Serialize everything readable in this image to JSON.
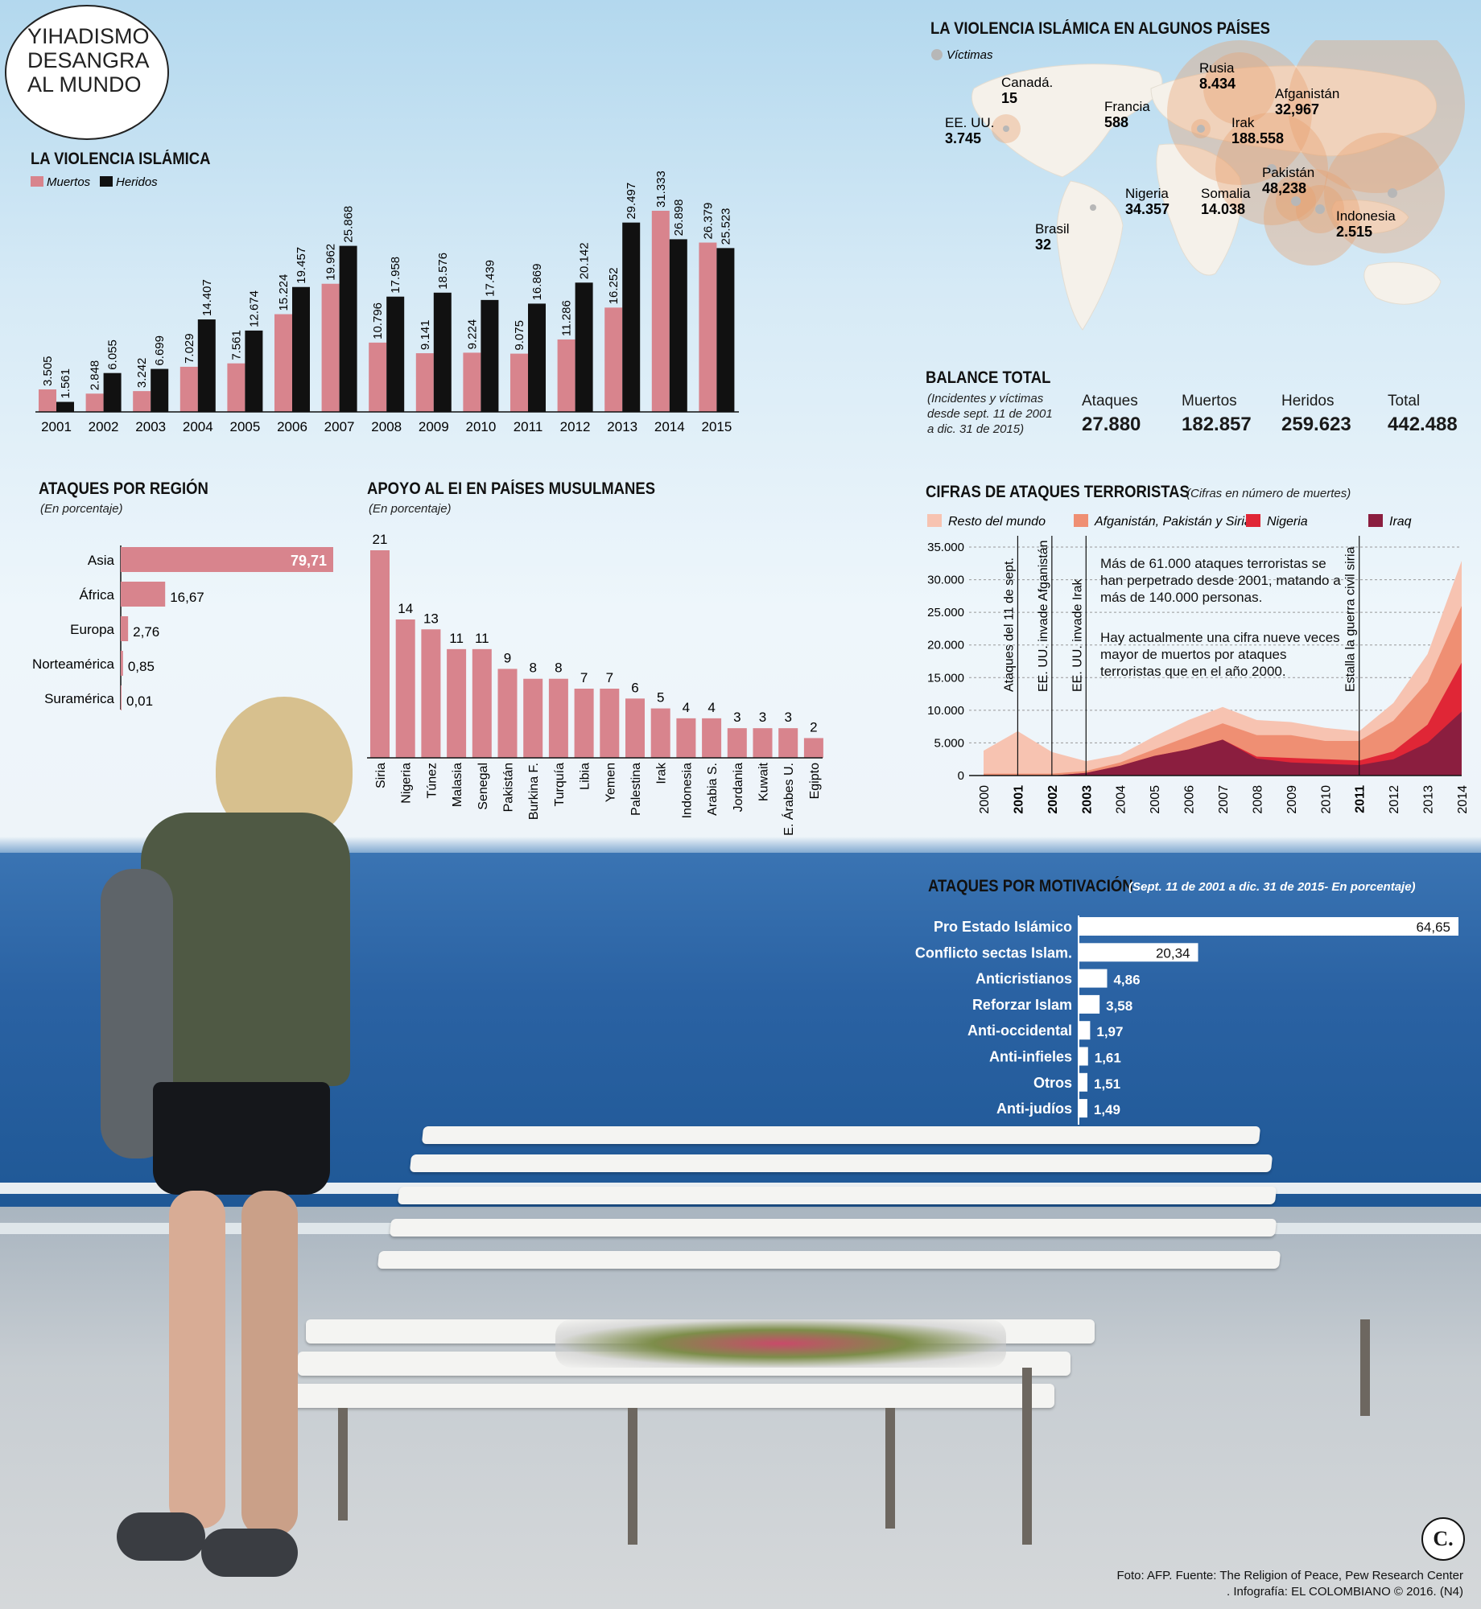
{
  "main_title": [
    "YIHADISMO",
    "DESANGRA",
    "AL MUNDO"
  ],
  "colors": {
    "muertos": "#d8848d",
    "heridos": "#111111",
    "resto": "#f7c3b1",
    "afg": "#ef8f73",
    "nigeria": "#e02636",
    "iraq": "#8b1e3f"
  },
  "violencia": {
    "title": "LA VIOLENCIA ISLÁMICA",
    "legend": [
      "Muertos",
      "Heridos"
    ],
    "chart_data": {
      "type": "bar",
      "categories": [
        "2001",
        "2002",
        "2003",
        "2004",
        "2005",
        "2006",
        "2007",
        "2008",
        "2009",
        "2010",
        "2011",
        "2012",
        "2013",
        "2014",
        "2015"
      ],
      "series": [
        {
          "name": "Muertos",
          "values": [
            3505,
            2848,
            3242,
            7029,
            7561,
            15224,
            19962,
            10796,
            9141,
            9224,
            9075,
            11286,
            16252,
            31333,
            26379
          ],
          "labels": [
            "3.505",
            "2.848",
            "3.242",
            "7.029",
            "7.561",
            "15.224",
            "19.962",
            "10.796",
            "9.141",
            "9.224",
            "9.075",
            "11.286",
            "16.252",
            "31.333",
            "26.379"
          ]
        },
        {
          "name": "Heridos",
          "values": [
            1561,
            6055,
            6699,
            14407,
            12674,
            19457,
            25868,
            17958,
            18576,
            17439,
            16869,
            20142,
            29497,
            26898,
            25523
          ],
          "labels": [
            "1.561",
            "6.055",
            "6.699",
            "14.407",
            "12.674",
            "19.457",
            "25.868",
            "17.958",
            "18.576",
            "17.439",
            "16.869",
            "20.142",
            "29.497",
            "26.898",
            "25.523"
          ]
        }
      ],
      "ylim": [
        0,
        31333
      ]
    }
  },
  "mapa": {
    "title": "LA VIOLENCIA ISLÁMICA EN ALGUNOS PAÍSES",
    "legend": "Víctimas",
    "countries": [
      {
        "name": "Canadá.",
        "value": "15"
      },
      {
        "name": "EE. UU.",
        "value": "3.745"
      },
      {
        "name": "Francia",
        "value": "588"
      },
      {
        "name": "Rusia",
        "value": "8.434"
      },
      {
        "name": "Afganistán",
        "value": "32,967"
      },
      {
        "name": "Irak",
        "value": "188.558"
      },
      {
        "name": "Pakistán",
        "value": "48,238"
      },
      {
        "name": "Nigeria",
        "value": "34.357"
      },
      {
        "name": "Somalia",
        "value": "14.038"
      },
      {
        "name": "Indonesia",
        "value": "2.515"
      },
      {
        "name": "Brasil",
        "value": "32"
      }
    ]
  },
  "balance": {
    "title": "BALANCE TOTAL",
    "subtitle": [
      "(Incidentes y víctimas",
      "desde sept. 11 de 2001",
      "a dic. 31 de 2015)"
    ],
    "items": [
      {
        "label": "Ataques",
        "value": "27.880"
      },
      {
        "label": "Muertos",
        "value": "182.857"
      },
      {
        "label": "Heridos",
        "value": "259.623"
      },
      {
        "label": "Total",
        "value": "442.488"
      }
    ]
  },
  "region": {
    "title": "ATAQUES POR REGIÓN",
    "subtitle": "(En porcentaje)",
    "chart_data": {
      "type": "bar",
      "orientation": "horizontal",
      "categories": [
        "Asia",
        "África",
        "Europa",
        "Norteamérica",
        "Suramérica"
      ],
      "values": [
        79.71,
        16.67,
        2.76,
        0.85,
        0.01
      ],
      "labels": [
        "79,71",
        "16,67",
        "2,76",
        "0,85",
        "0,01"
      ]
    }
  },
  "apoyo": {
    "title": "APOYO AL EI EN PAÍSES MUSULMANES",
    "subtitle": "(En porcentaje)",
    "chart_data": {
      "type": "bar",
      "categories": [
        "Siria",
        "Nigeria",
        "Túnez",
        "Malasia",
        "Senegal",
        "Pakistán",
        "Burkina F.",
        "Turquía",
        "Libia",
        "Yemen",
        "Palestina",
        "Irak",
        "Indonesia",
        "Arabia S.",
        "Jordania",
        "Kuwait",
        "E. Árabes U.",
        "Egipto"
      ],
      "values": [
        21,
        14,
        13,
        11,
        11,
        9,
        8,
        8,
        7,
        7,
        6,
        5,
        4,
        4,
        3,
        3,
        3,
        2
      ]
    }
  },
  "cifras": {
    "title": "CIFRAS DE ATAQUES TERRORISTAS",
    "subtitle": "(Cifras en número de muertes)",
    "legend": [
      "Resto del mundo",
      "Afganistán, Pakistán y Siria",
      "Nigeria",
      "Iraq"
    ],
    "events": [
      "Ataques del 11 de sept.",
      "EE. UU. invade Afganistán",
      "EE. UU. invade Irak",
      "Estalla la guerra civil siria"
    ],
    "note1": "Más de 61.000 ataques terroristas se han perpetrado desde 2001, matando a más de 140.000 personas.",
    "note2": "Hay actualmente una cifra nueve veces mayor de muertos por ataques terroristas que en el año 2000.",
    "y_ticks": [
      "35.000",
      "30.000",
      "25.000",
      "20.000",
      "15.000",
      "10.000",
      "5.000",
      "0"
    ],
    "chart_data": {
      "type": "area",
      "stacked": true,
      "x": [
        "2000",
        "2001",
        "2002",
        "2003",
        "2004",
        "2005",
        "2006",
        "2007",
        "2008",
        "2009",
        "2010",
        "2011",
        "2012",
        "2013",
        "2014"
      ],
      "bold_years": [
        "2001",
        "2002",
        "2003",
        "2011"
      ],
      "ylim": [
        0,
        35000
      ],
      "series": [
        {
          "name": "Iraq",
          "values": [
            0,
            0,
            0,
            400,
            1500,
            3000,
            4000,
            5500,
            2600,
            2000,
            1800,
            1600,
            2500,
            5000,
            9800
          ]
        },
        {
          "name": "Nigeria",
          "values": [
            0,
            0,
            0,
            0,
            0,
            0,
            0,
            0,
            300,
            700,
            700,
            700,
            1200,
            2800,
            7500
          ]
        },
        {
          "name": "Afganistán, Pakistán y Siria",
          "values": [
            300,
            300,
            300,
            300,
            500,
            1000,
            2000,
            2500,
            3300,
            3500,
            2800,
            3000,
            4700,
            6500,
            8700
          ]
        },
        {
          "name": "Resto del mundo",
          "values": [
            3500,
            6500,
            3300,
            1500,
            1200,
            2000,
            2500,
            2500,
            2300,
            2000,
            2000,
            1500,
            2700,
            4300,
            6900
          ]
        }
      ]
    }
  },
  "motivacion": {
    "title": "ATAQUES POR MOTIVACIÓN",
    "subtitle": "(Sept. 11 de 2001 a dic. 31 de 2015- En porcentaje)",
    "chart_data": {
      "type": "bar",
      "orientation": "horizontal",
      "categories": [
        "Pro Estado Islámico",
        "Conflicto sectas Islam.",
        "Anticristianos",
        "Reforzar Islam",
        "Anti-occidental",
        "Anti-infieles",
        "Otros",
        "Anti-judíos"
      ],
      "values": [
        64.65,
        20.34,
        4.86,
        3.58,
        1.97,
        1.61,
        1.51,
        1.49
      ],
      "labels": [
        "64,65",
        "20,34",
        "4,86",
        "3,58",
        "1,97",
        "1,61",
        "1,51",
        "1,49"
      ]
    }
  },
  "credits": {
    "line1": "Foto: AFP. Fuente: The Religion of Peace, Pew Research Center",
    "line2": ". Infografía: EL COLOMBIANO © 2016. (N4)",
    "logo": "C."
  }
}
